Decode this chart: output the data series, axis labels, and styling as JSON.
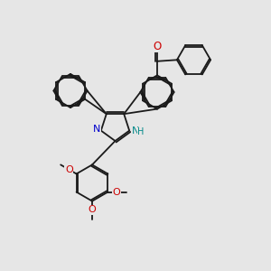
{
  "bg_color": "#e6e6e6",
  "bond_color": "#1a1a1a",
  "N_color": "#0000cc",
  "O_color": "#cc0000",
  "NH_color": "#008888",
  "bond_lw": 1.3,
  "ring_r": 0.62,
  "xlim": [
    0,
    10
  ],
  "ylim": [
    0,
    10
  ]
}
